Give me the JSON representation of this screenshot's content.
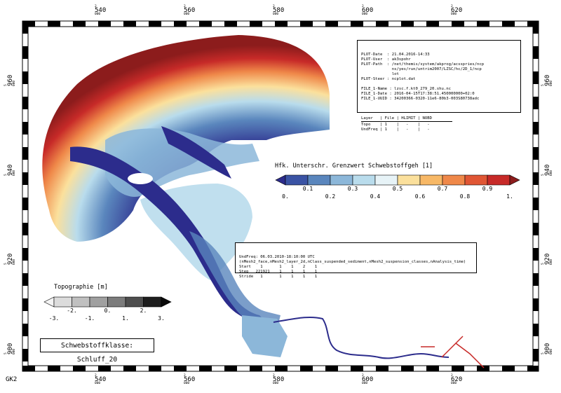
{
  "projection_label": "GK2",
  "x_axis": {
    "ticks": [
      {
        "major": "540",
        "prefix": "2",
        "suffix": "000"
      },
      {
        "major": "560",
        "prefix": "2",
        "suffix": "000"
      },
      {
        "major": "580",
        "prefix": "2",
        "suffix": "000"
      },
      {
        "major": "600",
        "prefix": "2",
        "suffix": "000"
      },
      {
        "major": "620",
        "prefix": "2",
        "suffix": "000"
      }
    ]
  },
  "y_axis": {
    "ticks": [
      {
        "major": "960",
        "prefix": "5",
        "suffix": "000"
      },
      {
        "major": "940",
        "prefix": "5",
        "suffix": "000"
      },
      {
        "major": "920",
        "prefix": "5",
        "suffix": "000"
      },
      {
        "major": "900",
        "prefix": "5",
        "suffix": "000"
      }
    ]
  },
  "plot_info": {
    "lines": [
      "PLOT-Date  : 21.04.2016-14:33",
      "PLOT-User  : ak3spohr",
      "PLOT-Path  : /net/themis/system/akprog/acsspries/ncp",
      "             ns/yes/run/untrim2007/LZSC/hc/2D_1/ncp",
      "             lot",
      "PLOT-Steer : ncplot.dat",
      "",
      "FILE_1-Name : lzsc.f.kt0_279_20.shu.nc",
      "FILE_1-Date : 2016-04-15T17:38:51.450000000+02:0",
      "FILE_1-UUID : 34200366-0320-11e6-80b3-003S80738adc",
      ""
    ],
    "table": {
      "headers": [
        "Layer",
        "File",
        "HLIMIT",
        "NOBD"
      ],
      "rows": [
        [
          "Topo",
          "1",
          "-",
          "-"
        ],
        [
          "UndFreq",
          "1",
          "-",
          "-"
        ]
      ]
    }
  },
  "time_info": {
    "lines": [
      "UndFreq: 06.03.2010-18:10:00 UTC",
      "(nMesh2_face,nMesh2_layer_2d,nClass_suspended_sediment,nMesh2_suspension_classes,nAnalysis_time)",
      "Start    1       1    1    2    1",
      "Step   221921    1    1    1    1",
      "Stride   1       1    1    1    1"
    ]
  },
  "color_legend": {
    "title": "Hfk. Unterschr. Grenzwert Schwebstoffgeh [1]",
    "colors": [
      "#2c2c8c",
      "#3a53a4",
      "#5a86bd",
      "#8cb7d9",
      "#b9dcec",
      "#e7f3f7",
      "#fbe09c",
      "#f7b866",
      "#ef8849",
      "#e05634",
      "#c72a28",
      "#8c1c1c"
    ],
    "labels_top": [
      "0.1",
      "0.3",
      "0.5",
      "0.7",
      "0.9"
    ],
    "labels_bottom": [
      "0.",
      "0.2",
      "0.4",
      "0.6",
      "0.8",
      "1."
    ]
  },
  "topo_legend": {
    "title": "Topographie [m]",
    "colors": [
      "#f4f4f4",
      "#dcdcdc",
      "#c0c0c0",
      "#a0a0a0",
      "#7c7c7c",
      "#4e4e4e",
      "#1e1e1e",
      "#0a0a0a"
    ],
    "labels_top": [
      "-2.",
      "0.",
      "2."
    ],
    "labels_bottom": [
      "-3.",
      "-1.",
      "1.",
      "3."
    ]
  },
  "sediment_class": "Schwebstoffklasse: Schluff_20"
}
